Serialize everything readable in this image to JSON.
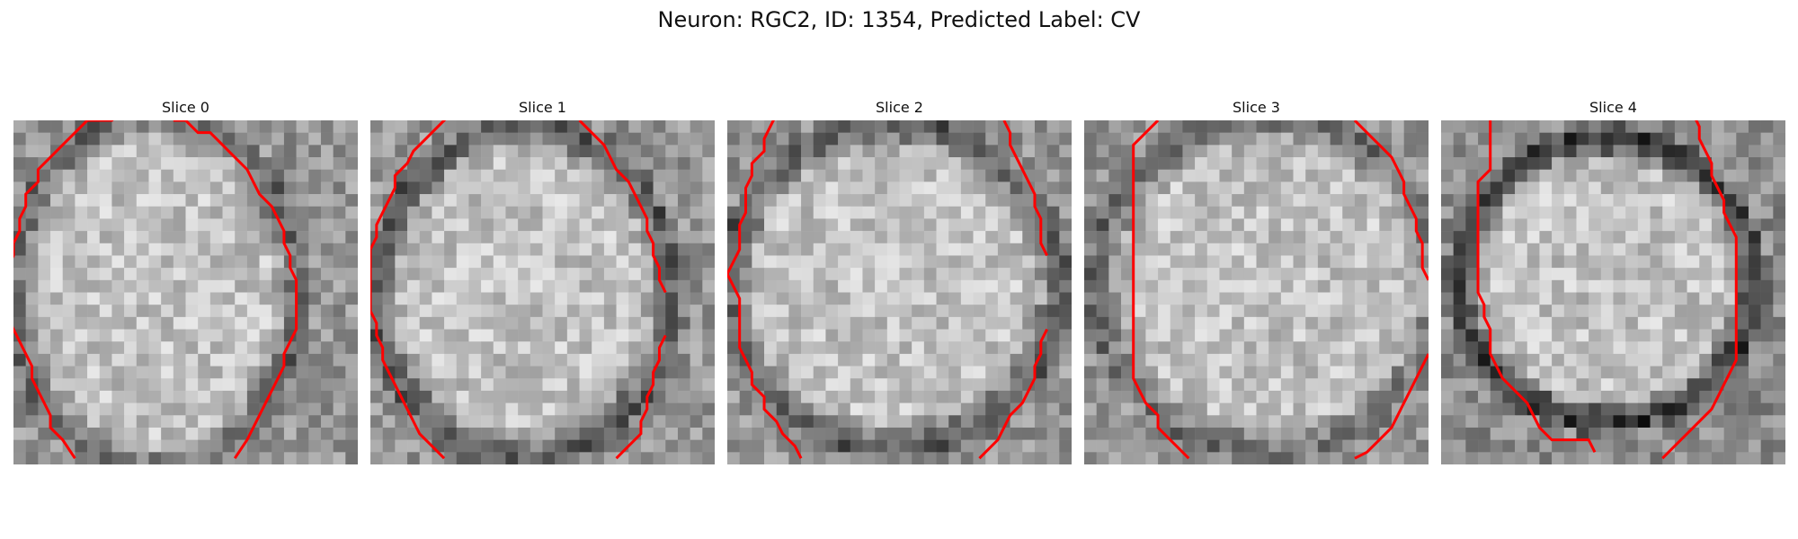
{
  "figure": {
    "title": "Neuron: RGC2, ID: 1354, Predicted Label: CV"
  },
  "slices": [
    {
      "label": "Slice 0",
      "contours": [
        [
          [
            10,
            -2
          ],
          [
            9,
            -1
          ],
          [
            8,
            0
          ],
          [
            6,
            0
          ],
          [
            5,
            1
          ],
          [
            4,
            2
          ],
          [
            3,
            3
          ],
          [
            2,
            4
          ],
          [
            2,
            5
          ],
          [
            1,
            6
          ],
          [
            1,
            7
          ],
          [
            0.5,
            8
          ],
          [
            0.5,
            9
          ],
          [
            0,
            10
          ],
          [
            0,
            11
          ],
          [
            -0.5,
            12
          ],
          [
            -0.5,
            13
          ],
          [
            -0.5,
            14
          ],
          [
            -0.5,
            15
          ],
          [
            -0.5,
            16
          ],
          [
            0,
            17
          ],
          [
            0.5,
            18
          ],
          [
            1,
            19
          ],
          [
            1.5,
            20
          ],
          [
            1.5,
            21
          ],
          [
            2,
            22
          ],
          [
            2.5,
            23
          ],
          [
            3,
            24
          ],
          [
            3,
            25
          ],
          [
            4,
            26
          ],
          [
            5,
            27.5
          ]
        ],
        [
          [
            13,
            0
          ],
          [
            14,
            0
          ],
          [
            15,
            1
          ],
          [
            16,
            1
          ],
          [
            17,
            2
          ],
          [
            18,
            3
          ],
          [
            19,
            4
          ],
          [
            19.5,
            5
          ],
          [
            20,
            6
          ],
          [
            21,
            7
          ],
          [
            21.5,
            8
          ],
          [
            22,
            9
          ],
          [
            22,
            10
          ],
          [
            22.5,
            11
          ],
          [
            22.5,
            12
          ],
          [
            23,
            13
          ],
          [
            23,
            14
          ],
          [
            23,
            15
          ],
          [
            23,
            16
          ],
          [
            23,
            17
          ],
          [
            22.5,
            18
          ],
          [
            22,
            19
          ],
          [
            22,
            20
          ],
          [
            21.5,
            21
          ],
          [
            21,
            22
          ],
          [
            20.5,
            23
          ],
          [
            20,
            24
          ],
          [
            19.5,
            25
          ],
          [
            19,
            26
          ],
          [
            18,
            27.5
          ]
        ]
      ]
    },
    {
      "label": "Slice 1",
      "contours": [
        [
          [
            6.5,
            -0.5
          ],
          [
            5.5,
            0.5
          ],
          [
            4.5,
            1.5
          ],
          [
            3.5,
            2.5
          ],
          [
            3,
            3.5
          ],
          [
            2,
            4.5
          ],
          [
            2,
            5.5
          ],
          [
            1.5,
            6.5
          ],
          [
            1,
            7.5
          ],
          [
            0.5,
            8.5
          ],
          [
            0.5,
            9.5
          ],
          [
            0,
            10.5
          ],
          [
            0,
            11.5
          ],
          [
            0,
            12.5
          ],
          [
            0,
            13.5
          ],
          [
            0,
            14.5
          ],
          [
            0,
            15.5
          ],
          [
            0.5,
            16.5
          ],
          [
            0.5,
            17.5
          ],
          [
            1,
            18.5
          ],
          [
            1,
            19.5
          ],
          [
            1.5,
            20.5
          ],
          [
            2,
            21.5
          ],
          [
            2.5,
            22.5
          ],
          [
            3,
            23.5
          ],
          [
            3.5,
            24.5
          ],
          [
            4,
            25.5
          ],
          [
            5,
            26.5
          ],
          [
            6,
            27.5
          ]
        ],
        [
          [
            17,
            0
          ],
          [
            18,
            1
          ],
          [
            19,
            2
          ],
          [
            19.5,
            3
          ],
          [
            20,
            4
          ],
          [
            21,
            5
          ],
          [
            21.5,
            6
          ],
          [
            22,
            7
          ],
          [
            22.5,
            8
          ],
          [
            22.5,
            9
          ],
          [
            23,
            10
          ],
          [
            23,
            11
          ],
          [
            23.5,
            12
          ],
          [
            23.5,
            13
          ],
          [
            24,
            14
          ]
        ],
        [
          [
            24,
            17.5
          ],
          [
            23.5,
            18.5
          ],
          [
            23.5,
            19.5
          ],
          [
            23,
            20.5
          ],
          [
            23,
            21.5
          ],
          [
            22.5,
            22.5
          ],
          [
            22.5,
            23.5
          ],
          [
            22,
            24.5
          ],
          [
            22,
            25.5
          ],
          [
            21,
            26.5
          ],
          [
            20,
            27.5
          ]
        ]
      ]
    },
    {
      "label": "Slice 2",
      "contours": [
        [
          [
            4,
            -0.5
          ],
          [
            3.5,
            0.5
          ],
          [
            3,
            1.5
          ],
          [
            3,
            2.5
          ],
          [
            2,
            3.5
          ],
          [
            2,
            4.5
          ],
          [
            1.5,
            5.5
          ],
          [
            1.5,
            6.5
          ],
          [
            1.5,
            7.5
          ],
          [
            1,
            8.5
          ],
          [
            1,
            9.5
          ],
          [
            1,
            10.5
          ],
          [
            0.5,
            11.5
          ],
          [
            0,
            12.5
          ],
          [
            0.5,
            13.5
          ],
          [
            1,
            14.5
          ],
          [
            1,
            15.5
          ],
          [
            1,
            16.5
          ],
          [
            1,
            17.5
          ],
          [
            1,
            18.5
          ],
          [
            1.5,
            19.5
          ],
          [
            2,
            20.5
          ],
          [
            2,
            21.5
          ],
          [
            3,
            22.5
          ],
          [
            3,
            23.5
          ],
          [
            4,
            24.5
          ],
          [
            4.5,
            25.5
          ],
          [
            5.5,
            26.5
          ],
          [
            6,
            27.5
          ]
        ],
        [
          [
            22.5,
            0
          ],
          [
            23,
            1
          ],
          [
            23,
            2
          ],
          [
            23.5,
            3
          ],
          [
            24,
            4
          ],
          [
            24.5,
            5
          ],
          [
            25,
            6
          ],
          [
            25,
            7
          ],
          [
            25.5,
            8
          ],
          [
            25.5,
            9
          ],
          [
            25.5,
            10
          ],
          [
            26,
            11
          ]
        ],
        [
          [
            26,
            17
          ],
          [
            25.5,
            18
          ],
          [
            25.5,
            19
          ],
          [
            25,
            20
          ],
          [
            25,
            21
          ],
          [
            24.5,
            22
          ],
          [
            24,
            23
          ],
          [
            23,
            24
          ],
          [
            22.5,
            25
          ],
          [
            22,
            26
          ],
          [
            21,
            27
          ],
          [
            20.5,
            27.5
          ]
        ]
      ]
    },
    {
      "label": "Slice 3",
      "contours": [
        [
          [
            6,
            0
          ],
          [
            5,
            1
          ],
          [
            4,
            2
          ],
          [
            4,
            3
          ],
          [
            4,
            4
          ],
          [
            4,
            5
          ],
          [
            4,
            6
          ],
          [
            4,
            7
          ],
          [
            4,
            8
          ],
          [
            4,
            9
          ],
          [
            4,
            10
          ],
          [
            4,
            11
          ],
          [
            4,
            12
          ],
          [
            4,
            13
          ],
          [
            4,
            14
          ],
          [
            4,
            15
          ],
          [
            4,
            16
          ],
          [
            4,
            17
          ],
          [
            4,
            18
          ],
          [
            4,
            19
          ],
          [
            4,
            20
          ],
          [
            4,
            21
          ],
          [
            4.5,
            22
          ],
          [
            5,
            23
          ],
          [
            6,
            24
          ],
          [
            6,
            25
          ],
          [
            7,
            26
          ],
          [
            8,
            27
          ],
          [
            8.5,
            27.5
          ]
        ],
        [
          [
            22,
            0
          ],
          [
            23,
            1
          ],
          [
            24,
            2
          ],
          [
            25,
            3
          ],
          [
            25.5,
            4
          ],
          [
            26,
            5
          ],
          [
            26,
            6
          ],
          [
            26.5,
            7
          ],
          [
            27,
            8
          ],
          [
            27,
            9
          ],
          [
            27.5,
            10
          ],
          [
            27.5,
            11
          ],
          [
            27.5,
            12
          ],
          [
            28,
            13
          ]
        ],
        [
          [
            28,
            19
          ],
          [
            27.5,
            20
          ],
          [
            27,
            21
          ],
          [
            26.5,
            22
          ],
          [
            26,
            23
          ],
          [
            25.5,
            24
          ],
          [
            25,
            25
          ],
          [
            24,
            26
          ],
          [
            23,
            27
          ],
          [
            22,
            27.5
          ]
        ]
      ]
    },
    {
      "label": "Slice 4",
      "contours": [
        [
          [
            4,
            0
          ],
          [
            4,
            1
          ],
          [
            4,
            2
          ],
          [
            4,
            3
          ],
          [
            4,
            4
          ],
          [
            3,
            5
          ],
          [
            3,
            6
          ],
          [
            3,
            7
          ],
          [
            3,
            8
          ],
          [
            3,
            9
          ],
          [
            3,
            10
          ],
          [
            3,
            11
          ],
          [
            3,
            12
          ],
          [
            3,
            13
          ],
          [
            3,
            14
          ],
          [
            3.5,
            15
          ],
          [
            3.5,
            16
          ],
          [
            4,
            17
          ],
          [
            4,
            18
          ],
          [
            4,
            19
          ],
          [
            4.5,
            20
          ],
          [
            5,
            21
          ],
          [
            6,
            22
          ],
          [
            7,
            23
          ],
          [
            7.5,
            24
          ],
          [
            8,
            25
          ],
          [
            9,
            26
          ],
          [
            10,
            26
          ],
          [
            11,
            26
          ],
          [
            12,
            26
          ],
          [
            12.5,
            27
          ]
        ],
        [
          [
            20.5,
            -0.5
          ],
          [
            21,
            0.5
          ],
          [
            21,
            1.5
          ],
          [
            21.5,
            2.5
          ],
          [
            22,
            3.5
          ],
          [
            22,
            4.5
          ],
          [
            22.5,
            5.5
          ],
          [
            23,
            6.5
          ],
          [
            23,
            7.5
          ],
          [
            23.5,
            8.5
          ],
          [
            24,
            9.5
          ],
          [
            24,
            10.5
          ],
          [
            24,
            11.5
          ],
          [
            24,
            12.5
          ],
          [
            24,
            13.5
          ],
          [
            24,
            14.5
          ],
          [
            24,
            15.5
          ],
          [
            24,
            16.5
          ],
          [
            24,
            17.5
          ],
          [
            24,
            18.5
          ],
          [
            24,
            19.5
          ],
          [
            23.5,
            20.5
          ],
          [
            23,
            21.5
          ],
          [
            22.5,
            22.5
          ],
          [
            22,
            23.5
          ],
          [
            21,
            24.5
          ],
          [
            20,
            25.5
          ],
          [
            19,
            26.5
          ],
          [
            18,
            27.5
          ]
        ]
      ]
    }
  ],
  "colors": {
    "contour": "#ff0000",
    "background": "#ffffff"
  }
}
